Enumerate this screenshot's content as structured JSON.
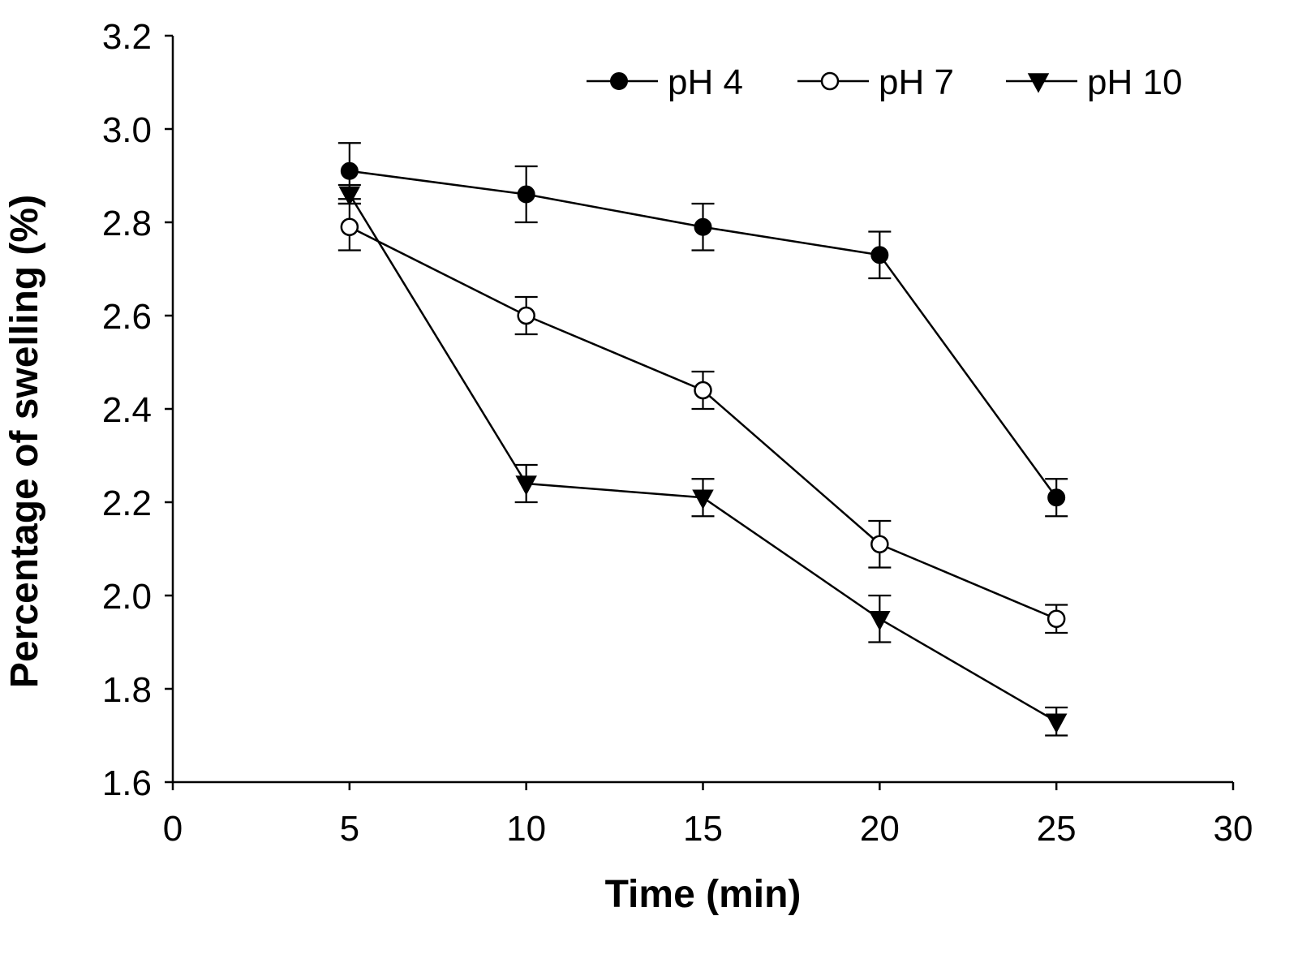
{
  "chart_data": {
    "type": "line",
    "title": "",
    "xlabel": "Time (min)",
    "ylabel": "Percentage of swelling (%)",
    "xlim": [
      0,
      30
    ],
    "ylim": [
      1.6,
      3.2
    ],
    "x_ticks": [
      0,
      5,
      10,
      15,
      20,
      25,
      30
    ],
    "x_tick_labels": [
      "0",
      "5",
      "10",
      "15",
      "20",
      "25",
      "30"
    ],
    "y_ticks": [
      1.6,
      1.8,
      2.0,
      2.2,
      2.4,
      2.6,
      2.8,
      3.0,
      3.2
    ],
    "y_tick_labels": [
      "1.6",
      "1.8",
      "2.0",
      "2.2",
      "2.4",
      "2.6",
      "2.8",
      "3.0",
      "3.2"
    ],
    "grid": false,
    "legend_position": "top-right",
    "x": [
      5,
      10,
      15,
      20,
      25
    ],
    "series": [
      {
        "name": "pH 4",
        "marker": "filled-circle",
        "values": [
          2.91,
          2.86,
          2.79,
          2.73,
          2.21
        ],
        "errors": [
          0.06,
          0.06,
          0.05,
          0.05,
          0.04
        ]
      },
      {
        "name": "pH 7",
        "marker": "open-circle",
        "values": [
          2.79,
          2.6,
          2.44,
          2.11,
          1.95
        ],
        "errors": [
          0.05,
          0.04,
          0.04,
          0.05,
          0.03
        ]
      },
      {
        "name": "pH 10",
        "marker": "filled-down-triangle",
        "values": [
          2.86,
          2.24,
          2.21,
          1.95,
          1.73
        ],
        "errors": [
          0.02,
          0.04,
          0.04,
          0.05,
          0.03
        ]
      }
    ]
  },
  "colors": {
    "ink": "#000000",
    "background": "#ffffff"
  }
}
